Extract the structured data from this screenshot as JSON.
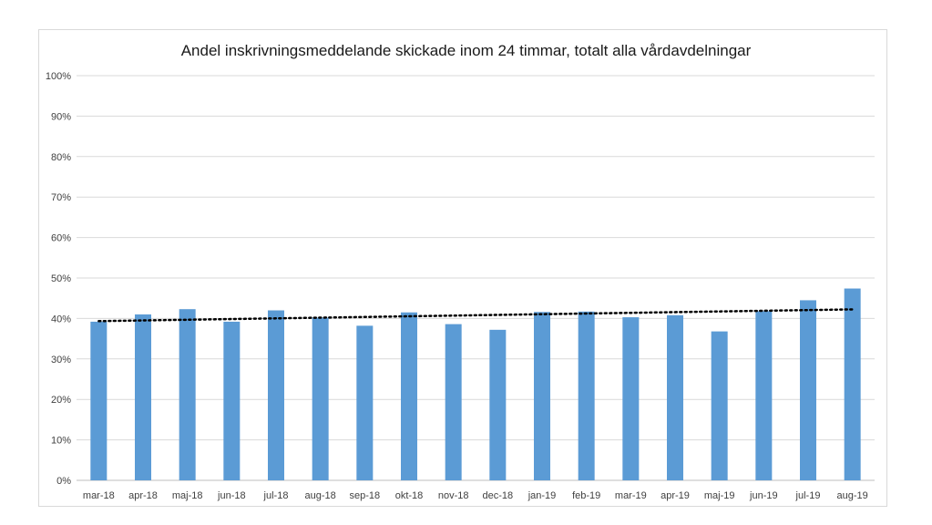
{
  "chart_data": {
    "type": "bar",
    "title": "Andel inskrivningsmeddelande  skickade inom 24 timmar, totalt alla vårdavdelningar",
    "xlabel": "",
    "ylabel": "",
    "ylim": [
      0,
      100
    ],
    "yticks": [
      "0%",
      "10%",
      "20%",
      "30%",
      "40%",
      "50%",
      "60%",
      "70%",
      "80%",
      "90%",
      "100%"
    ],
    "categories": [
      "mar-18",
      "apr-18",
      "maj-18",
      "jun-18",
      "jul-18",
      "aug-18",
      "sep-18",
      "okt-18",
      "nov-18",
      "dec-18",
      "jan-19",
      "feb-19",
      "mar-19",
      "apr-19",
      "maj-19",
      "jun-19",
      "jul-19",
      "aug-19"
    ],
    "values": [
      39.2,
      41.0,
      42.3,
      39.2,
      42.0,
      40.2,
      38.2,
      41.5,
      38.6,
      37.2,
      41.6,
      41.7,
      40.3,
      40.8,
      36.8,
      41.8,
      44.5,
      47.4
    ],
    "trendline": {
      "type": "linear",
      "style": "dotted",
      "color": "#000000"
    },
    "grid": true,
    "legend": "none",
    "bar_color": "#5b9bd5",
    "grid_color": "#d9d9d9"
  }
}
